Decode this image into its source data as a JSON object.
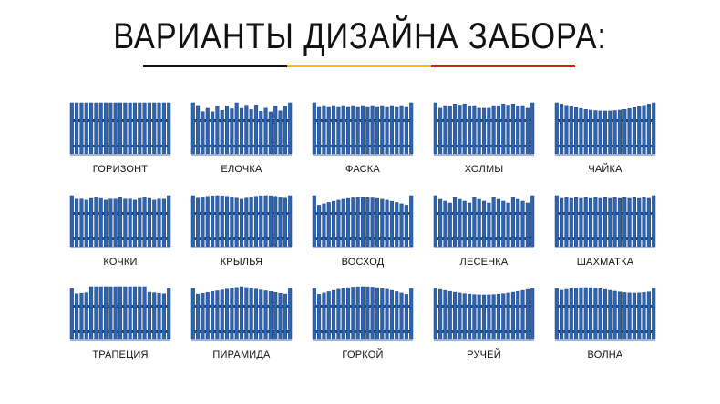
{
  "title": "ВАРИАНТЫ ДИЗАЙНА ЗАБОРА:",
  "colors": {
    "fence": "#2f63ad",
    "fence_dark": "#1d4685",
    "underline": [
      "#111111",
      "#f2c200",
      "#d61a1a"
    ]
  },
  "fence_icon": "fence-icon",
  "designs": [
    {
      "name": "ГОРИЗОНТ",
      "profile": "flat"
    },
    {
      "name": "ЕЛОЧКА",
      "profile": "zigzag"
    },
    {
      "name": "ФАСКА",
      "profile": "bevel"
    },
    {
      "name": "ХОЛМЫ",
      "profile": "hills"
    },
    {
      "name": "ЧАЙКА",
      "profile": "valley"
    },
    {
      "name": "КОЧКИ",
      "profile": "bumps"
    },
    {
      "name": "КРЫЛЬЯ",
      "profile": "wings"
    },
    {
      "name": "ВОСХОД",
      "profile": "sunrise"
    },
    {
      "name": "ЛЕСЕНКА",
      "profile": "steps"
    },
    {
      "name": "ШАХМАТКА",
      "profile": "checker"
    },
    {
      "name": "ТРАПЕЦИЯ",
      "profile": "trapezoid"
    },
    {
      "name": "ПИРАМИДА",
      "profile": "pyramid"
    },
    {
      "name": "ГОРКОЙ",
      "profile": "arch"
    },
    {
      "name": "РУЧЕЙ",
      "profile": "stream"
    },
    {
      "name": "ВОЛНА",
      "profile": "wave"
    }
  ]
}
